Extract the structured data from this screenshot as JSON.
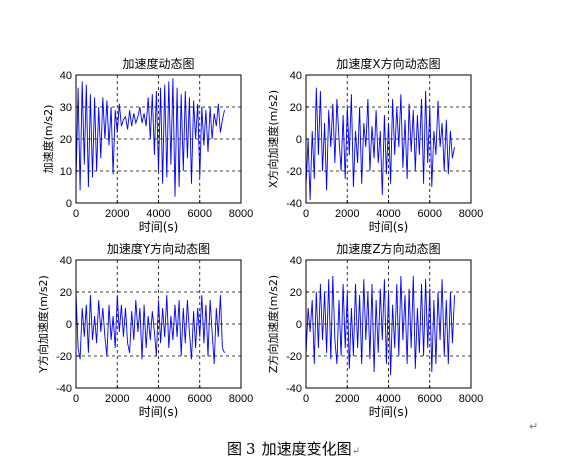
{
  "caption": {
    "prefix": "图",
    "number": "3",
    "text": "加速度变化图",
    "mark": "↵"
  },
  "para_mark": "↵",
  "chart_data": [
    {
      "type": "line",
      "title": "加速度动态图",
      "xlabel": "时间(s)",
      "ylabel": "加速度(m/s2)",
      "xlim": [
        0,
        8000
      ],
      "ylim": [
        0,
        40
      ],
      "xticks": [
        0,
        2000,
        4000,
        6000,
        8000
      ],
      "yticks": [
        0,
        10,
        20,
        30,
        40
      ],
      "grid": true,
      "color": "#0000ff",
      "series": [
        {
          "x": [
            0,
            100,
            200,
            300,
            400,
            500,
            600,
            700,
            800,
            900,
            1000,
            1100,
            1200,
            1300,
            1400,
            1500,
            1600,
            1700,
            1800,
            1900,
            2000,
            2100,
            2200,
            2300,
            2400,
            2500,
            2600,
            2700,
            2800,
            2900,
            3000,
            3100,
            3200,
            3300,
            3400,
            3500,
            3600,
            3700,
            3800,
            3900,
            4000,
            4100,
            4200,
            4300,
            4400,
            4500,
            4600,
            4700,
            4800,
            4900,
            5000,
            5100,
            5200,
            5300,
            5400,
            5500,
            5600,
            5700,
            5800,
            5900,
            6000,
            6100,
            6200,
            6300,
            6400,
            6500,
            6600,
            6700,
            6800,
            6900,
            7000,
            7100,
            7200
          ],
          "y": [
            6,
            36,
            4,
            38,
            12,
            37,
            5,
            34,
            8,
            33,
            10,
            30,
            14,
            33,
            20,
            32,
            18,
            30,
            9,
            29,
            22,
            31,
            24,
            26,
            27,
            23,
            29,
            24,
            28,
            25,
            27,
            30,
            25,
            28,
            24,
            33,
            20,
            34,
            15,
            35,
            10,
            36,
            6,
            37,
            8,
            38,
            12,
            39,
            2,
            36,
            5,
            34,
            10,
            35,
            14,
            33,
            6,
            32,
            20,
            31,
            8,
            30,
            18,
            29,
            16,
            30,
            20,
            28,
            24,
            31,
            22,
            26,
            29
          ]
        }
      ]
    },
    {
      "type": "line",
      "title": "加速度X方向动态图",
      "xlabel": "时间(s)",
      "ylabel": "X方向加速度(m/s2)",
      "xlim": [
        0,
        8000
      ],
      "ylim": [
        -40,
        40
      ],
      "xticks": [
        0,
        2000,
        4000,
        6000,
        8000
      ],
      "yticks": [
        -40,
        -20,
        0,
        20,
        40
      ],
      "grid": true,
      "color": "#0000ff",
      "series": [
        {
          "x": [
            0,
            100,
            200,
            300,
            400,
            500,
            600,
            700,
            800,
            900,
            1000,
            1100,
            1200,
            1300,
            1400,
            1500,
            1600,
            1700,
            1800,
            1900,
            2000,
            2100,
            2200,
            2300,
            2400,
            2500,
            2600,
            2700,
            2800,
            2900,
            3000,
            3100,
            3200,
            3300,
            3400,
            3500,
            3600,
            3700,
            3800,
            3900,
            4000,
            4100,
            4200,
            4300,
            4400,
            4500,
            4600,
            4700,
            4800,
            4900,
            5000,
            5100,
            5200,
            5300,
            5400,
            5500,
            5600,
            5700,
            5800,
            5900,
            6000,
            6100,
            6200,
            6300,
            6400,
            6500,
            6600,
            6700,
            6800,
            6900,
            7000,
            7100,
            7200
          ],
          "y": [
            -30,
            0,
            -38,
            5,
            -25,
            32,
            -10,
            30,
            -20,
            10,
            -32,
            18,
            -5,
            22,
            -15,
            25,
            0,
            -20,
            15,
            -25,
            20,
            -10,
            28,
            -30,
            5,
            -15,
            20,
            -28,
            10,
            -5,
            25,
            -20,
            8,
            -12,
            18,
            -15,
            5,
            -35,
            15,
            -22,
            10,
            -28,
            25,
            -10,
            20,
            -5,
            28,
            -18,
            12,
            -25,
            22,
            -8,
            18,
            -20,
            15,
            -10,
            25,
            -28,
            30,
            -15,
            20,
            -30,
            5,
            -10,
            24,
            -5,
            10,
            -20,
            12,
            -22,
            5,
            -12,
            -5
          ]
        }
      ]
    },
    {
      "type": "line",
      "title": "加速度Y方向动态图",
      "xlabel": "时间(s)",
      "ylabel": "Y方向加速度(m/s2)",
      "xlim": [
        0,
        8000
      ],
      "ylim": [
        -40,
        40
      ],
      "xticks": [
        0,
        2000,
        4000,
        6000,
        8000
      ],
      "yticks": [
        -40,
        -20,
        0,
        20,
        40
      ],
      "grid": true,
      "color": "#0000ff",
      "series": [
        {
          "x": [
            0,
            100,
            200,
            300,
            400,
            500,
            600,
            700,
            800,
            900,
            1000,
            1100,
            1200,
            1300,
            1400,
            1500,
            1600,
            1700,
            1800,
            1900,
            2000,
            2100,
            2200,
            2300,
            2400,
            2500,
            2600,
            2700,
            2800,
            2900,
            3000,
            3100,
            3200,
            3300,
            3400,
            3500,
            3600,
            3700,
            3800,
            3900,
            4000,
            4100,
            4200,
            4300,
            4400,
            4500,
            4600,
            4700,
            4800,
            4900,
            5000,
            5100,
            5200,
            5300,
            5400,
            5500,
            5600,
            5700,
            5800,
            5900,
            6000,
            6100,
            6200,
            6300,
            6400,
            6500,
            6600,
            6700,
            6800,
            6900,
            7000,
            7100,
            7200
          ],
          "y": [
            20,
            -15,
            -22,
            10,
            -8,
            12,
            -18,
            18,
            -10,
            5,
            -12,
            15,
            -5,
            10,
            -8,
            -20,
            12,
            -10,
            5,
            -15,
            18,
            -5,
            12,
            -8,
            10,
            -12,
            -18,
            8,
            -10,
            15,
            -5,
            10,
            -22,
            12,
            -15,
            5,
            -10,
            8,
            -5,
            -20,
            15,
            -12,
            10,
            -8,
            18,
            -15,
            5,
            -10,
            12,
            -8,
            15,
            -20,
            10,
            -12,
            15,
            -5,
            -22,
            8,
            -15,
            10,
            -8,
            18,
            -12,
            12,
            -20,
            15,
            -5,
            -25,
            10,
            -8,
            18,
            -15,
            -18
          ]
        }
      ]
    },
    {
      "type": "line",
      "title": "加速度Z方向动态图",
      "xlabel": "时间(s)",
      "ylabel": "Z方向加速度(m/s2)",
      "xlim": [
        0,
        8000
      ],
      "ylim": [
        -40,
        40
      ],
      "xticks": [
        0,
        2000,
        4000,
        6000,
        8000
      ],
      "yticks": [
        -40,
        -20,
        0,
        20,
        40
      ],
      "grid": true,
      "color": "#0000ff",
      "series": [
        {
          "x": [
            0,
            100,
            200,
            300,
            400,
            500,
            600,
            700,
            800,
            900,
            1000,
            1100,
            1200,
            1300,
            1400,
            1500,
            1600,
            1700,
            1800,
            1900,
            2000,
            2100,
            2200,
            2300,
            2400,
            2500,
            2600,
            2700,
            2800,
            2900,
            3000,
            3100,
            3200,
            3300,
            3400,
            3500,
            3600,
            3700,
            3800,
            3900,
            4000,
            4100,
            4200,
            4300,
            4400,
            4500,
            4600,
            4700,
            4800,
            4900,
            5000,
            5100,
            5200,
            5300,
            5400,
            5500,
            5600,
            5700,
            5800,
            5900,
            6000,
            6100,
            6200,
            6300,
            6400,
            6500,
            6600,
            6700,
            6800,
            6900,
            7000,
            7100,
            7200
          ],
          "y": [
            -20,
            10,
            -5,
            15,
            -25,
            20,
            -15,
            25,
            -10,
            20,
            -18,
            28,
            -22,
            30,
            -10,
            -25,
            15,
            -20,
            25,
            -15,
            20,
            -28,
            10,
            -20,
            25,
            -15,
            18,
            -25,
            28,
            -10,
            20,
            -22,
            25,
            -30,
            15,
            -18,
            22,
            -10,
            28,
            -25,
            20,
            -32,
            12,
            -15,
            25,
            -20,
            30,
            -10,
            18,
            -25,
            22,
            -15,
            30,
            -28,
            10,
            -18,
            25,
            -20,
            28,
            -15,
            22,
            -30,
            15,
            -25,
            20,
            -10,
            28,
            -20,
            15,
            -25,
            20,
            -12,
            18
          ]
        }
      ]
    }
  ]
}
